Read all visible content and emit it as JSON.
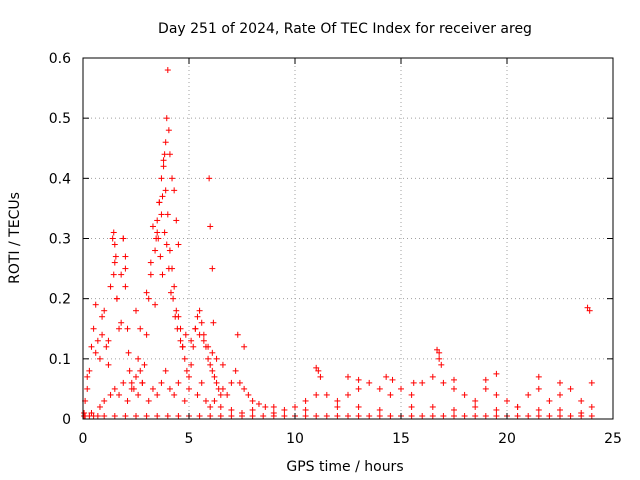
{
  "chart_data": {
    "type": "scatter",
    "title": "Day 251 of 2024, Rate Of TEC Index for receiver areg",
    "xlabel": "GPS time / hours",
    "ylabel": "ROTI / TECUs",
    "xlim": [
      0,
      25
    ],
    "ylim": [
      0,
      0.6
    ],
    "xticks": [
      0,
      5,
      10,
      15,
      20,
      25
    ],
    "xtick_labels": [
      "0",
      "5",
      "10",
      "15",
      "20",
      "25"
    ],
    "yticks": [
      0,
      0.1,
      0.2,
      0.3,
      0.4,
      0.5,
      0.6
    ],
    "ytick_labels": [
      "0",
      "0.1",
      "0.2",
      "0.3",
      "0.4",
      "0.5",
      "0.6"
    ],
    "grid": true,
    "marker": "+",
    "point_color": "#ff0000",
    "series": [
      {
        "x": [
          0.05,
          0.1,
          0.2,
          0.3,
          0.4,
          0.5,
          0.6,
          0.7,
          0.8,
          0.9,
          1.0,
          1.1,
          1.2,
          1.3,
          1.4,
          1.5,
          1.6,
          1.7,
          1.8,
          1.9,
          2.0,
          2.1,
          2.2,
          2.3,
          2.4,
          2.5,
          2.6,
          2.7,
          2.8,
          2.9,
          3.0,
          3.1,
          3.2,
          3.3,
          3.4,
          3.5,
          3.6,
          3.7,
          3.8,
          3.9,
          4.0,
          4.1,
          4.2,
          4.3,
          4.4,
          4.5,
          4.6,
          4.7,
          4.8,
          4.9,
          5.0,
          5.1,
          5.2,
          5.3,
          5.4,
          5.5,
          5.6,
          5.7,
          5.8,
          5.9,
          6.0,
          6.1,
          6.2,
          6.3,
          6.4,
          6.5,
          6.6,
          6.8,
          7.0,
          7.2,
          7.4,
          7.6,
          7.8,
          8.0,
          8.3,
          8.6,
          9.0,
          9.5,
          10.0,
          10.5,
          11.0,
          11.2,
          11.5,
          12.0,
          12.5,
          13.0,
          13.5,
          14.0,
          14.5,
          15.0,
          15.5,
          16.0,
          16.5,
          16.8,
          17.0,
          17.5,
          18.0,
          18.5,
          19.0,
          19.5,
          20.0,
          20.5,
          21.0,
          21.5,
          22.0,
          22.5,
          23.0,
          23.5,
          24.0,
          0.05,
          0.4,
          0.8,
          1.0,
          1.3,
          1.5,
          1.7,
          1.9,
          2.1,
          2.3,
          2.6,
          2.8,
          3.1,
          3.3,
          3.5,
          3.7,
          3.9,
          4.1,
          4.3,
          4.5,
          4.8,
          5.0,
          5.4,
          5.6,
          5.8,
          6.0,
          6.2,
          6.5,
          7.0,
          7.5,
          8.0,
          9.0,
          10.5,
          12.0,
          13.0,
          14.0,
          15.5,
          16.5,
          17.5,
          18.5,
          19.5,
          20.5,
          21.5,
          22.5,
          23.5,
          0.2,
          0.6,
          0.9,
          1.2,
          1.45,
          1.6,
          1.8,
          2.0,
          2.15,
          2.5,
          2.7,
          3.0,
          3.2,
          3.4,
          3.55,
          3.65,
          3.75,
          3.85,
          3.95,
          4.05,
          4.15,
          4.25,
          4.35,
          4.45,
          4.6,
          4.7,
          4.85,
          5.1,
          5.3,
          5.5,
          5.7,
          5.9,
          6.1,
          6.3,
          6.6,
          7.3,
          7.6,
          3.85,
          3.9,
          3.95,
          4.0,
          4.05,
          4.1,
          4.2,
          4.3,
          3.8,
          3.75,
          3.7,
          3.6,
          3.5,
          3.45,
          4.4,
          4.5,
          1.45,
          1.5,
          1.55,
          1.9,
          2.0,
          5.95,
          6.0,
          6.1,
          6.15,
          0.1,
          0.3,
          0.5,
          0.7,
          1.0,
          1.5,
          2.0,
          2.5,
          3.0,
          3.5,
          4.0,
          4.5,
          5.0,
          5.5,
          6.0,
          6.5,
          7.0,
          7.5,
          8.0,
          8.5,
          9.0,
          9.5,
          10.0,
          10.5,
          11.0,
          11.5,
          12.0,
          12.5,
          13.0,
          13.5,
          14.0,
          14.5,
          15.0,
          15.5,
          16.0,
          16.5,
          17.0,
          17.5,
          18.0,
          18.5,
          19.0,
          19.5,
          20.0,
          20.5,
          21.0,
          21.5,
          22.0,
          22.5,
          23.0,
          23.5,
          24.0,
          16.7,
          16.8,
          16.9,
          17.5,
          19.0,
          19.5,
          21.5,
          22.5,
          23.8,
          23.9,
          24.0,
          12.5,
          13.0,
          14.3,
          14.6,
          15.6,
          11.0,
          11.1
        ],
        "y": [
          0.01,
          0.03,
          0.05,
          0.08,
          0.12,
          0.15,
          0.19,
          0.13,
          0.1,
          0.14,
          0.18,
          0.12,
          0.09,
          0.22,
          0.3,
          0.26,
          0.2,
          0.15,
          0.24,
          0.3,
          0.22,
          0.15,
          0.08,
          0.06,
          0.05,
          0.07,
          0.1,
          0.08,
          0.06,
          0.09,
          0.14,
          0.2,
          0.26,
          0.32,
          0.28,
          0.33,
          0.36,
          0.4,
          0.43,
          0.38,
          0.34,
          0.28,
          0.25,
          0.22,
          0.18,
          0.17,
          0.15,
          0.12,
          0.1,
          0.08,
          0.07,
          0.09,
          0.12,
          0.15,
          0.17,
          0.18,
          0.16,
          0.14,
          0.12,
          0.1,
          0.09,
          0.08,
          0.07,
          0.06,
          0.05,
          0.04,
          0.05,
          0.04,
          0.06,
          0.08,
          0.06,
          0.05,
          0.04,
          0.03,
          0.025,
          0.02,
          0.02,
          0.015,
          0.02,
          0.03,
          0.04,
          0.07,
          0.04,
          0.03,
          0.04,
          0.05,
          0.06,
          0.05,
          0.04,
          0.05,
          0.04,
          0.06,
          0.07,
          0.1,
          0.06,
          0.05,
          0.04,
          0.03,
          0.05,
          0.04,
          0.03,
          0.02,
          0.04,
          0.05,
          0.03,
          0.04,
          0.05,
          0.03,
          0.02,
          0.005,
          0.01,
          0.02,
          0.03,
          0.04,
          0.05,
          0.04,
          0.06,
          0.03,
          0.05,
          0.04,
          0.06,
          0.03,
          0.05,
          0.04,
          0.06,
          0.08,
          0.05,
          0.04,
          0.06,
          0.03,
          0.05,
          0.04,
          0.06,
          0.03,
          0.02,
          0.03,
          0.02,
          0.015,
          0.01,
          0.015,
          0.01,
          0.015,
          0.02,
          0.02,
          0.015,
          0.02,
          0.02,
          0.015,
          0.02,
          0.015,
          0.02,
          0.015,
          0.015,
          0.01,
          0.07,
          0.11,
          0.17,
          0.13,
          0.24,
          0.2,
          0.16,
          0.27,
          0.11,
          0.18,
          0.15,
          0.21,
          0.24,
          0.19,
          0.3,
          0.27,
          0.24,
          0.31,
          0.29,
          0.25,
          0.21,
          0.2,
          0.17,
          0.15,
          0.13,
          0.12,
          0.14,
          0.13,
          0.15,
          0.14,
          0.13,
          0.12,
          0.11,
          0.1,
          0.09,
          0.14,
          0.12,
          0.44,
          0.46,
          0.5,
          0.58,
          0.48,
          0.44,
          0.4,
          0.38,
          0.42,
          0.37,
          0.34,
          0.36,
          0.31,
          0.3,
          0.33,
          0.29,
          0.31,
          0.29,
          0.27,
          0.3,
          0.25,
          0.4,
          0.32,
          0.25,
          0.16,
          0.005,
          0.005,
          0.005,
          0.005,
          0.005,
          0.005,
          0.005,
          0.005,
          0.005,
          0.005,
          0.005,
          0.005,
          0.005,
          0.005,
          0.005,
          0.005,
          0.005,
          0.005,
          0.005,
          0.005,
          0.005,
          0.005,
          0.005,
          0.005,
          0.005,
          0.005,
          0.005,
          0.005,
          0.005,
          0.005,
          0.005,
          0.005,
          0.005,
          0.005,
          0.005,
          0.005,
          0.005,
          0.005,
          0.005,
          0.005,
          0.005,
          0.005,
          0.005,
          0.005,
          0.005,
          0.005,
          0.005,
          0.005,
          0.005,
          0.005,
          0.005,
          0.115,
          0.11,
          0.09,
          0.065,
          0.065,
          0.075,
          0.07,
          0.06,
          0.185,
          0.18,
          0.06,
          0.07,
          0.065,
          0.07,
          0.065,
          0.06,
          0.085,
          0.08
        ]
      }
    ]
  }
}
